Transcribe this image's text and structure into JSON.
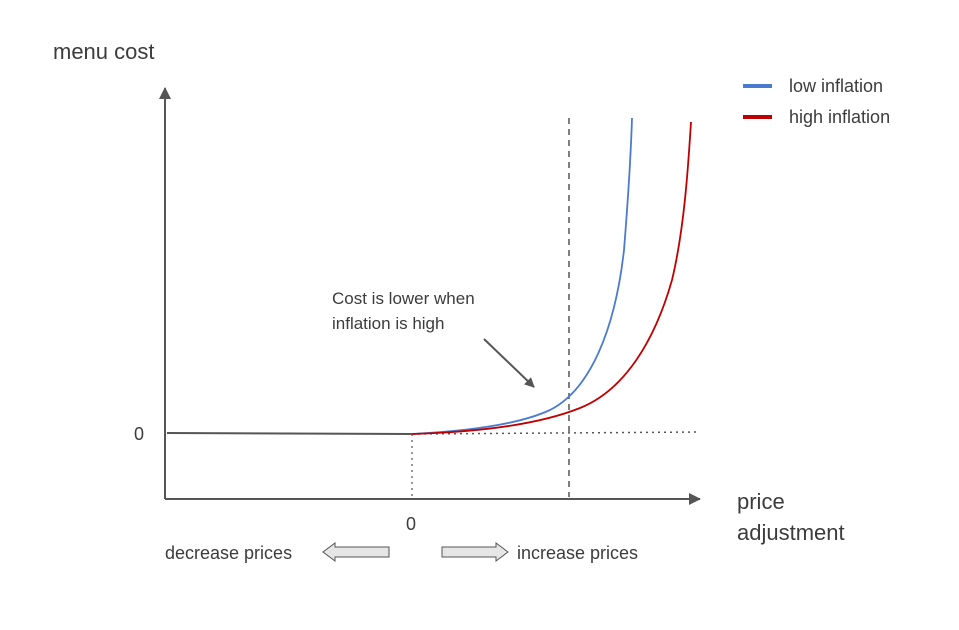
{
  "chart_data": {
    "type": "line",
    "ylabel": "menu cost",
    "xlabel_line1": "price",
    "xlabel_line2": "adjustment",
    "y_zero_label": "0",
    "x_zero_label": "0",
    "left_arrow_label": "decrease prices",
    "right_arrow_label": "increase prices",
    "annotation_line1": "Cost is lower when",
    "annotation_line2": "inflation is high",
    "legend_position": "top-right",
    "series": [
      {
        "name": "low inflation",
        "color": "#4a7bd0"
      },
      {
        "name": "high inflation",
        "color": "#c00000"
      }
    ]
  }
}
